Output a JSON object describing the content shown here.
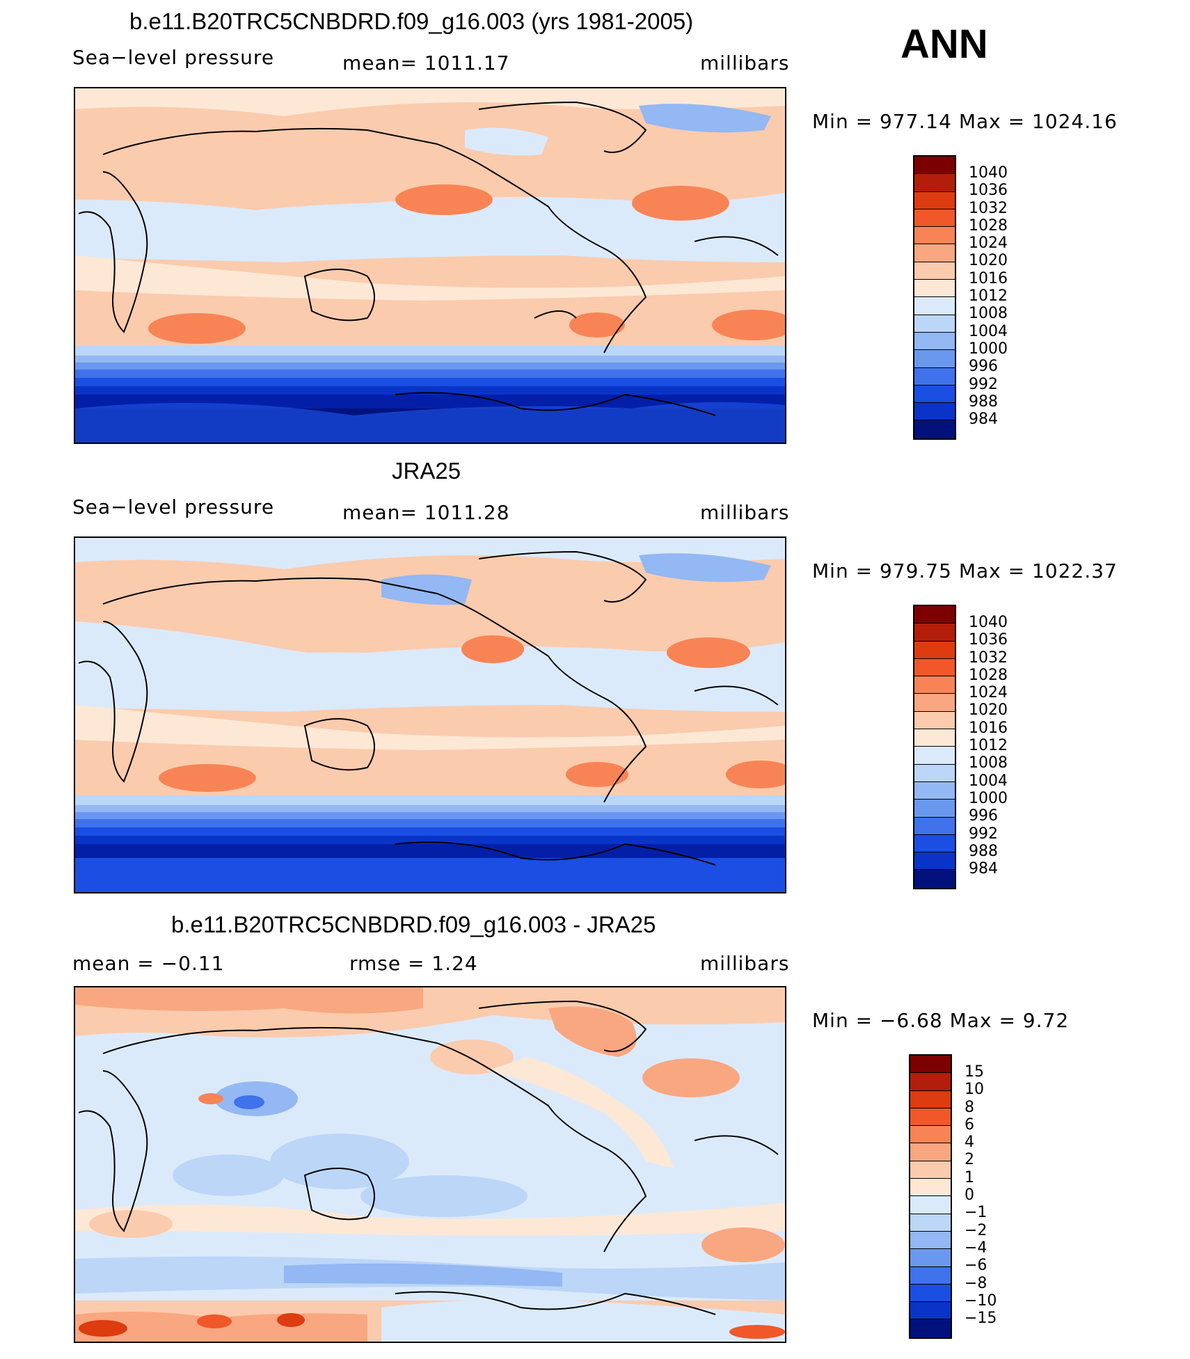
{
  "season": "ANN",
  "palette": {
    "warm": [
      "#7d0000",
      "#b21e0a",
      "#dd3b10",
      "#f0582a",
      "#f88455",
      "#f9a780",
      "#fbcbad",
      "#fde8d6"
    ],
    "cool": [
      "#dbeafb",
      "#bcd6f8",
      "#93b8f3",
      "#6b98ef",
      "#3f72eb",
      "#1b4ee3",
      "#0a34c8",
      "#031fa8",
      "#00117c"
    ]
  },
  "panels": [
    {
      "title": "b.e11.B20TRC5CNBDRD.f09_g16.003 (yrs 1981-2005)",
      "left_label": "Sea−level pressure",
      "center_label": "mean=  1011.17",
      "right_label": "millibars",
      "minmax": "Min  =  977.14  Max  =  1024.16",
      "colorbar_levels": [
        "1040",
        "1036",
        "1032",
        "1028",
        "1024",
        "1020",
        "1016",
        "1012",
        "1008",
        "1004",
        "1000",
        "996",
        "992",
        "988",
        "984"
      ]
    },
    {
      "title": "JRA25",
      "left_label": "Sea−level pressure",
      "center_label": "mean=  1011.28",
      "right_label": "millibars",
      "minmax": "Min  =  979.75  Max  =  1022.37",
      "colorbar_levels": [
        "1040",
        "1036",
        "1032",
        "1028",
        "1024",
        "1020",
        "1016",
        "1012",
        "1008",
        "1004",
        "1000",
        "996",
        "992",
        "988",
        "984"
      ]
    },
    {
      "title": "b.e11.B20TRC5CNBDRD.f09_g16.003 - JRA25",
      "left_label": "mean  =    −0.11",
      "center_label": "rmse  =     1.24",
      "right_label": "millibars",
      "minmax": "Min  =    −6.68  Max  =     9.72",
      "colorbar_levels": [
        "15",
        "10",
        "8",
        "6",
        "4",
        "2",
        "1",
        "0",
        "−1",
        "−2",
        "−4",
        "−6",
        "−8",
        "−10",
        "−15"
      ]
    }
  ]
}
